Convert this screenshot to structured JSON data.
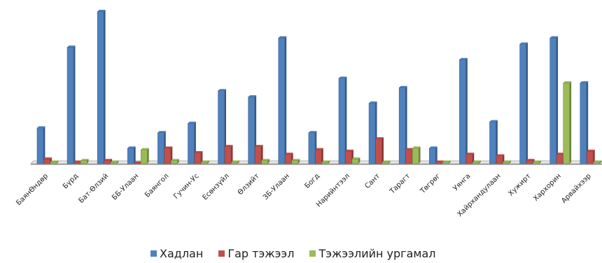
{
  "chart_data": {
    "type": "bar",
    "title": "",
    "xlabel": "",
    "ylabel": "",
    "ylim": [
      0,
      100
    ],
    "grid": false,
    "legend_position": "bottom",
    "categories": [
      "БаянӨндөр",
      "Бүрд",
      "Бат-Өлзий",
      "ББ-Улаан",
      "Баянгол",
      "Гучин-Ус",
      "Есөнзүйл",
      "Өлзийт",
      "ЗБ-Улаан",
      "Богд",
      "Нарийнтээл",
      "Сант",
      "Тарагт",
      "Төгрөг",
      "Уянга",
      "Хайрхандулаан",
      "Хужирт",
      "Хархорин",
      "Арвайхээр"
    ],
    "series": [
      {
        "name": "Хадлан",
        "color": "#4f81bd",
        "values": [
          23,
          75,
          98,
          10,
          20,
          26,
          47,
          43,
          81,
          20,
          55,
          39,
          49,
          10,
          67,
          27,
          77,
          81,
          52
        ]
      },
      {
        "name": "Гар тэжээл",
        "color": "#c0504d",
        "values": [
          3,
          1,
          2,
          0,
          10,
          7,
          11,
          11,
          6,
          9,
          8,
          16,
          9,
          1,
          6,
          5,
          2,
          6,
          8
        ]
      },
      {
        "name": "Тэжээлийн ургамал",
        "color": "#9bbb59",
        "values": [
          1,
          2,
          1,
          9,
          2,
          1,
          1,
          2,
          2,
          1,
          3,
          1,
          10,
          1,
          1,
          1,
          1,
          52,
          1
        ]
      }
    ]
  }
}
